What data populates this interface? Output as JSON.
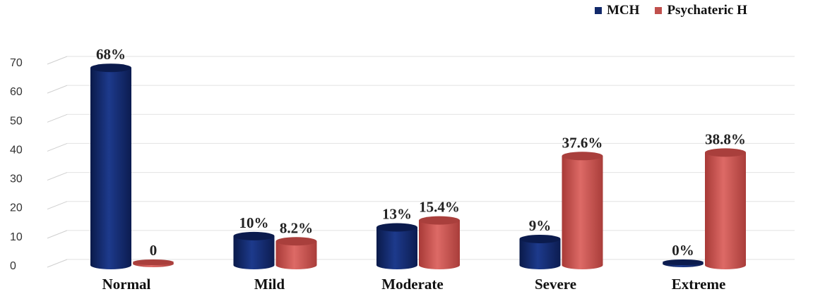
{
  "chart_data": {
    "type": "bar",
    "categories": [
      "Normal",
      "Mild",
      "Moderate",
      "Severe",
      "Extreme"
    ],
    "series": [
      {
        "name": "MCH",
        "values": [
          68,
          10,
          13,
          9,
          0
        ],
        "labels": [
          "68%",
          "10%",
          "13%",
          "9%",
          "0%"
        ],
        "color": "#12296a"
      },
      {
        "name": "Psychateric H",
        "values": [
          0,
          8.2,
          15.4,
          37.6,
          38.8
        ],
        "labels": [
          "0",
          "8.2%",
          "15.4%",
          "37.6%",
          "38.8%"
        ],
        "color": "#c0504d"
      }
    ],
    "yticks": [
      0,
      10,
      20,
      30,
      40,
      50,
      60,
      70
    ],
    "ylim": [
      0,
      75
    ],
    "grid": true,
    "legend_position": "top-right",
    "title": "",
    "xlabel": "",
    "ylabel": ""
  }
}
